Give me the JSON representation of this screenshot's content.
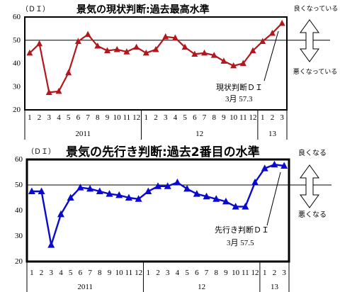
{
  "chart_data": [
    {
      "type": "line",
      "title": "景気の現状判断:過去最高水準",
      "ylabel": "（ＤＩ）",
      "ylim": [
        20,
        60
      ],
      "yticks": [
        60,
        50,
        40,
        30,
        20
      ],
      "grid": false,
      "reference_line": 50,
      "category_groups": [
        {
          "label": "2011",
          "categories": [
            "1",
            "2",
            "3",
            "4",
            "5",
            "6",
            "7",
            "8",
            "9",
            "10",
            "11",
            "12"
          ]
        },
        {
          "label": "12",
          "categories": [
            "1",
            "2",
            "3",
            "4",
            "5",
            "6",
            "7",
            "8",
            "9",
            "10",
            "11",
            "12"
          ]
        },
        {
          "label": "13",
          "categories": [
            "1",
            "2",
            "3"
          ]
        }
      ],
      "series": [
        {
          "color": "#B3171C",
          "values": [
            44.5,
            48.5,
            27.5,
            28.0,
            36.0,
            49.5,
            52.5,
            47.5,
            45.5,
            46.0,
            45.0,
            47.0,
            44.5,
            46.0,
            51.5,
            51.0,
            47.0,
            44.0,
            44.5,
            43.5,
            41.0,
            39.0,
            40.0,
            45.5,
            49.5,
            53.0,
            57.3
          ]
        }
      ],
      "direction_labels": {
        "up": "良くなっている",
        "down": "悪くなっている"
      },
      "annotation": [
        "現状判断ＤＩ",
        "3月 57.3"
      ]
    },
    {
      "type": "line",
      "title": "景気の先行き判断:過去2番目の水準",
      "ylabel": "（ＤＩ）",
      "ylim": [
        20,
        60
      ],
      "yticks": [
        60,
        50,
        40,
        30,
        20
      ],
      "grid": false,
      "reference_line": 50,
      "category_groups": [
        {
          "label": "2011",
          "categories": [
            "1",
            "2",
            "3",
            "4",
            "5",
            "6",
            "7",
            "8",
            "9",
            "10",
            "11",
            "12"
          ]
        },
        {
          "label": "12",
          "categories": [
            "1",
            "2",
            "3",
            "4",
            "5",
            "6",
            "7",
            "8",
            "9",
            "10",
            "11",
            "12"
          ]
        },
        {
          "label": "13",
          "categories": [
            "1",
            "2",
            "3"
          ]
        }
      ],
      "series": [
        {
          "color": "#0A0ACF",
          "values": [
            47.5,
            47.5,
            26.5,
            38.5,
            45.0,
            49.0,
            48.5,
            47.5,
            46.5,
            46.0,
            45.0,
            44.5,
            47.5,
            49.5,
            49.5,
            51.0,
            48.5,
            46.5,
            45.5,
            44.5,
            43.5,
            41.5,
            41.5,
            51.0,
            56.5,
            58.0,
            57.5
          ]
        }
      ],
      "direction_labels": {
        "up": "良くなる",
        "down": "悪くなる"
      },
      "annotation": [
        "先行き判断ＤＩ",
        "3月 57.5"
      ]
    }
  ]
}
